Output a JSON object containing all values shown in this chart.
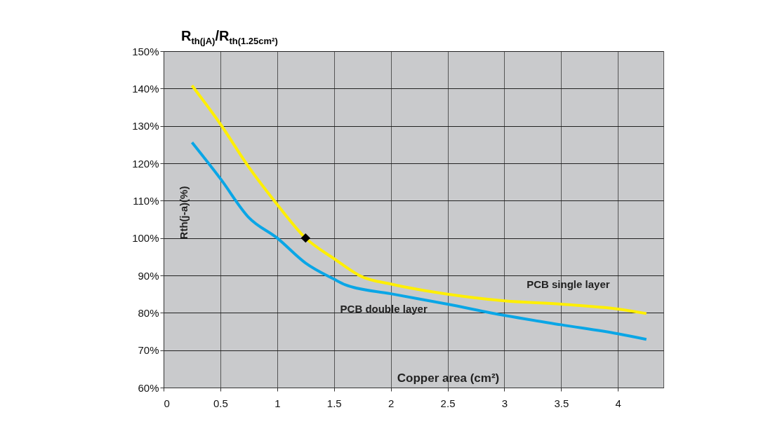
{
  "chart_data": {
    "type": "line",
    "title": "R$_{th(jA)}$/R$_{th(1.25cm²)}$",
    "xlabel": "Copper area (cm²)",
    "ylabel": "Rth(j-a)(%)",
    "xlim": [
      0,
      4.4
    ],
    "xticks": [
      0,
      0.5,
      1,
      1.5,
      2,
      2.5,
      3,
      3.5,
      4
    ],
    "ylim": [
      60,
      150
    ],
    "yticks": [
      {
        "value": 60,
        "label": "60%"
      },
      {
        "value": 70,
        "label": "70%"
      },
      {
        "value": 80,
        "label": "80%"
      },
      {
        "value": 90,
        "label": "90%"
      },
      {
        "value": 100,
        "label": "100%"
      },
      {
        "value": 110,
        "label": "110%"
      },
      {
        "value": 120,
        "label": "120%"
      },
      {
        "value": 130,
        "label": "130%"
      },
      {
        "value": 140,
        "label": "140%"
      },
      {
        "value": 150,
        "label": "150%"
      }
    ],
    "grid": true,
    "legend": false,
    "line_style": "solid",
    "marker": "none",
    "series": [
      {
        "name": "PCB single layer",
        "color": "#ffef00",
        "x": [
          0.25,
          0.5,
          0.75,
          1,
          1.25,
          1.5,
          1.75,
          2,
          2.25,
          2.5,
          3,
          3.5,
          4,
          4.25
        ],
        "values": [
          140.8,
          130.5,
          119,
          109,
          100,
          94.5,
          89.6,
          87.7,
          86.2,
          85,
          83.2,
          82.3,
          81,
          79.8
        ]
      },
      {
        "name": "PCB double layer",
        "color": "#0aa6e6",
        "x": [
          0.25,
          0.5,
          0.75,
          1,
          1.25,
          1.5,
          1.6,
          2,
          2.5,
          3,
          3.5,
          4,
          4.25
        ],
        "values": [
          125.6,
          115.9,
          105.5,
          100,
          93.3,
          89,
          87.5,
          85.1,
          82.3,
          79.3,
          76.8,
          74.4,
          72.9
        ]
      },
      {
        "type": "scatter",
        "marker": "diamond",
        "color": "#000000",
        "x": [
          1.25
        ],
        "values": [
          100
        ]
      }
    ]
  }
}
